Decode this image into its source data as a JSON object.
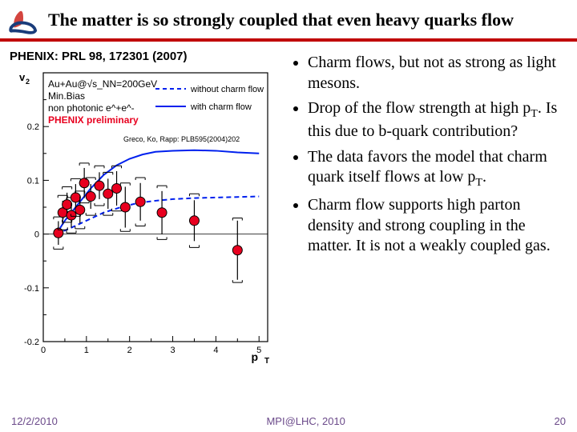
{
  "title": "The matter is so strongly coupled that even heavy quarks flow",
  "citation": "PHENIX: PRL 98, 172301 (2007)",
  "model_cite": "Greco, Ko, Rapp: PLB595(2004)202",
  "bullets": [
    "Charm flows, but not as strong as light mesons.",
    "Drop of the flow strength at high p_T. Is this due to b-quark contribution?",
    "The data favors the model that charm quark itself flows at low p_T.",
    "Charm flow supports high parton density and strong coupling in the matter. It is not a weakly coupled gas."
  ],
  "footer": {
    "date": "12/2/2010",
    "venue": "MPI@LHC, 2010",
    "page": "20"
  },
  "chart": {
    "type": "scatter",
    "xlabel": "p_T",
    "ylabel": "v_2",
    "xlim": [
      0,
      5.2
    ],
    "ylim": [
      -0.2,
      0.3
    ],
    "xticks": [
      0,
      0.5,
      1,
      1.5,
      2,
      2.5,
      3,
      3.5,
      4,
      4.5,
      5
    ],
    "yticks": [
      -0.2,
      -0.15,
      -0.1,
      -0.05,
      0,
      0.05,
      0.1,
      0.15,
      0.2,
      0.25
    ],
    "grid_color": "#000000",
    "background_color": "#ffffff",
    "annotations": {
      "reaction": "Au+Au@√s_NN=200GeV",
      "bias": "Min.Bias",
      "channel": "non photonic e^+e^-",
      "prelim": "PHENIX preliminary",
      "reaction_color": "#000000",
      "prelim_color": "#e8001f",
      "fontsize": 12
    },
    "legend": {
      "items": [
        {
          "label": "without charm flow",
          "style": "dashed",
          "color": "#0020ee"
        },
        {
          "label": "with charm flow",
          "style": "solid",
          "color": "#0020ee"
        }
      ],
      "fontsize": 12
    },
    "curves": {
      "without_charm": {
        "color": "#0020ee",
        "dash": true,
        "width": 2,
        "points": [
          [
            0.3,
            0.0
          ],
          [
            0.6,
            0.01
          ],
          [
            1.0,
            0.025
          ],
          [
            1.4,
            0.04
          ],
          [
            1.8,
            0.05
          ],
          [
            2.2,
            0.058
          ],
          [
            2.6,
            0.062
          ],
          [
            3.0,
            0.065
          ],
          [
            3.5,
            0.067
          ],
          [
            4.0,
            0.068
          ],
          [
            4.5,
            0.069
          ],
          [
            5.0,
            0.07
          ]
        ]
      },
      "with_charm": {
        "color": "#0020ee",
        "dash": false,
        "width": 2,
        "points": [
          [
            0.3,
            0.0
          ],
          [
            0.5,
            0.025
          ],
          [
            0.8,
            0.055
          ],
          [
            1.1,
            0.085
          ],
          [
            1.4,
            0.11
          ],
          [
            1.7,
            0.128
          ],
          [
            2.0,
            0.14
          ],
          [
            2.3,
            0.148
          ],
          [
            2.6,
            0.153
          ],
          [
            3.0,
            0.155
          ],
          [
            3.5,
            0.156
          ],
          [
            4.0,
            0.155
          ],
          [
            4.5,
            0.152
          ],
          [
            5.0,
            0.15
          ]
        ]
      }
    },
    "data": {
      "marker": "circle",
      "marker_color": "#e8001f",
      "marker_size": 6,
      "marker_edge": "#000000",
      "syst_box_color": "#000000",
      "points": [
        {
          "x": 0.35,
          "y": 0.002,
          "ey": 0.022,
          "sy": 0.03
        },
        {
          "x": 0.45,
          "y": 0.04,
          "ey": 0.022,
          "sy": 0.032
        },
        {
          "x": 0.55,
          "y": 0.055,
          "ey": 0.022,
          "sy": 0.033
        },
        {
          "x": 0.65,
          "y": 0.035,
          "ey": 0.023,
          "sy": 0.033
        },
        {
          "x": 0.75,
          "y": 0.068,
          "ey": 0.025,
          "sy": 0.035
        },
        {
          "x": 0.85,
          "y": 0.045,
          "ey": 0.025,
          "sy": 0.035
        },
        {
          "x": 0.95,
          "y": 0.095,
          "ey": 0.028,
          "sy": 0.037
        },
        {
          "x": 1.1,
          "y": 0.07,
          "ey": 0.023,
          "sy": 0.035
        },
        {
          "x": 1.3,
          "y": 0.09,
          "ey": 0.025,
          "sy": 0.037
        },
        {
          "x": 1.5,
          "y": 0.075,
          "ey": 0.028,
          "sy": 0.04
        },
        {
          "x": 1.7,
          "y": 0.085,
          "ey": 0.032,
          "sy": 0.042
        },
        {
          "x": 1.9,
          "y": 0.05,
          "ey": 0.038,
          "sy": 0.045
        },
        {
          "x": 2.25,
          "y": 0.06,
          "ey": 0.035,
          "sy": 0.045
        },
        {
          "x": 2.75,
          "y": 0.04,
          "ey": 0.04,
          "sy": 0.05
        },
        {
          "x": 3.5,
          "y": 0.025,
          "ey": 0.038,
          "sy": 0.05
        },
        {
          "x": 4.5,
          "y": -0.03,
          "ey": 0.055,
          "sy": 0.06
        }
      ]
    }
  },
  "colors": {
    "rule": "#c00000",
    "logo_flame": "#d4453f",
    "logo_ring": "#1a3c7a",
    "footer": "#6b4a8a"
  }
}
